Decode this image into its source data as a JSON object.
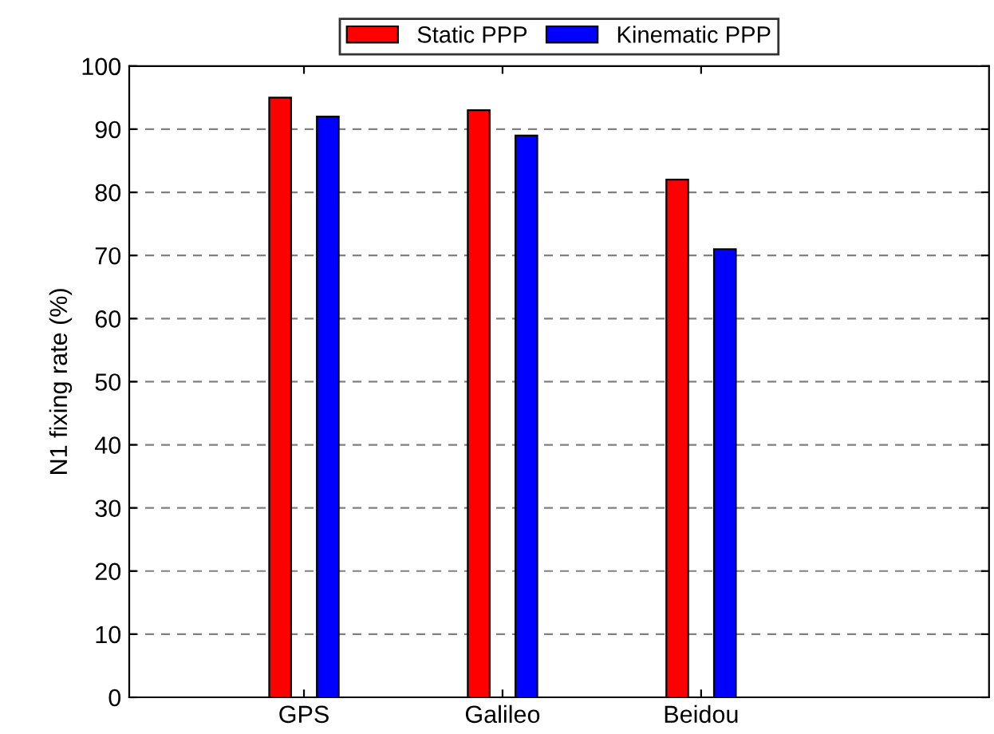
{
  "chart_data": {
    "type": "bar",
    "ylabel": "N1 fixing rate (%)",
    "categories": [
      "GPS",
      "Galileo",
      "Beidou"
    ],
    "series": [
      {
        "name": "Static PPP",
        "color": "#ff0000",
        "values": [
          95,
          93,
          82
        ]
      },
      {
        "name": "Kinematic PPP",
        "color": "#0000ff",
        "values": [
          92,
          89,
          71
        ]
      }
    ],
    "ylim": [
      0,
      100
    ],
    "yticks": [
      0,
      10,
      20,
      30,
      40,
      50,
      60,
      70,
      80,
      90,
      100
    ],
    "grid": "y",
    "legend": "top"
  }
}
